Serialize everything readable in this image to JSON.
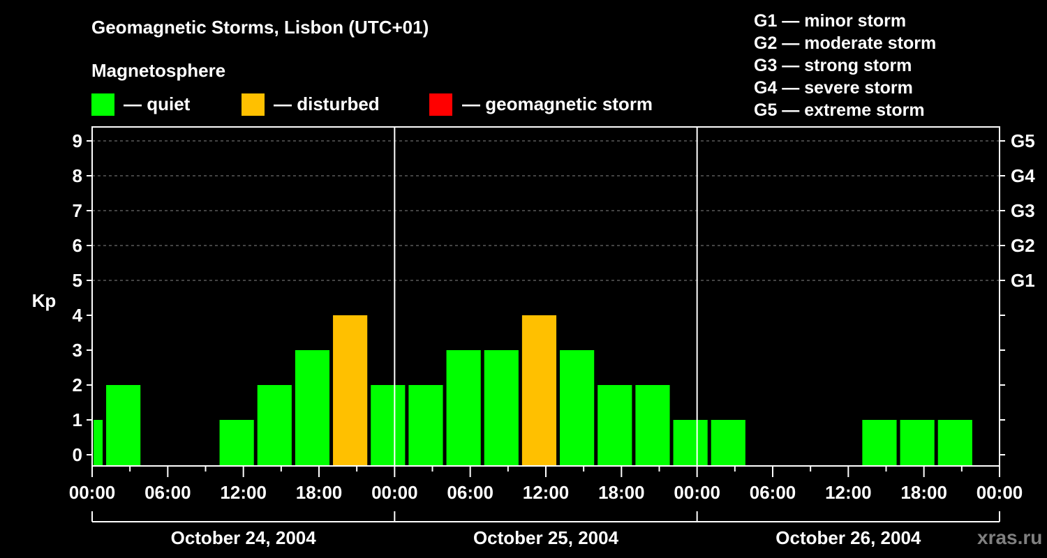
{
  "header": {
    "title": "Geomagnetic Storms, Lisbon (UTC+01)",
    "subtitle": "Magnetosphere"
  },
  "legend": [
    {
      "label": "— quiet",
      "color": "#00ff00"
    },
    {
      "label": "— disturbed",
      "color": "#ffc000"
    },
    {
      "label": "— geomagnetic storm",
      "color": "#ff0000"
    }
  ],
  "g_scale": [
    "G1 — minor storm",
    "G2 — moderate storm",
    "G3 — strong storm",
    "G4 — severe storm",
    "G5 — extreme storm"
  ],
  "watermark": "xras.ru",
  "chart_data": {
    "type": "bar",
    "title": "Geomagnetic Storms, Lisbon (UTC+01)",
    "ylabel": "Kp",
    "ylim": [
      0,
      9
    ],
    "y_ticks": [
      0,
      1,
      2,
      3,
      4,
      5,
      6,
      7,
      8,
      9
    ],
    "right_ticks": [
      {
        "kp": 5,
        "label": "G1"
      },
      {
        "kp": 6,
        "label": "G2"
      },
      {
        "kp": 7,
        "label": "G3"
      },
      {
        "kp": 8,
        "label": "G4"
      },
      {
        "kp": 9,
        "label": "G5"
      }
    ],
    "x_tick_labels": [
      "00:00",
      "06:00",
      "12:00",
      "18:00",
      "00:00",
      "06:00",
      "12:00",
      "18:00",
      "00:00",
      "06:00",
      "12:00",
      "18:00",
      "00:00"
    ],
    "days": [
      "October 24, 2004",
      "October 25, 2004",
      "October 26, 2004"
    ],
    "grid": "dashed at Kp 5-9",
    "series": [
      {
        "name": "Kp",
        "bars": [
          {
            "start_h": 0,
            "end_h": 1,
            "kp": 1,
            "status": "quiet"
          },
          {
            "start_h": 1,
            "end_h": 4,
            "kp": 2,
            "status": "quiet"
          },
          {
            "start_h": 4,
            "end_h": 7,
            "kp": 0,
            "status": "quiet"
          },
          {
            "start_h": 7,
            "end_h": 10,
            "kp": 0,
            "status": "quiet"
          },
          {
            "start_h": 10,
            "end_h": 13,
            "kp": 1,
            "status": "quiet"
          },
          {
            "start_h": 13,
            "end_h": 16,
            "kp": 2,
            "status": "quiet"
          },
          {
            "start_h": 16,
            "end_h": 19,
            "kp": 3,
            "status": "quiet"
          },
          {
            "start_h": 19,
            "end_h": 22,
            "kp": 4,
            "status": "disturbed"
          },
          {
            "start_h": 22,
            "end_h": 25,
            "kp": 2,
            "status": "quiet"
          },
          {
            "start_h": 25,
            "end_h": 28,
            "kp": 2,
            "status": "quiet"
          },
          {
            "start_h": 28,
            "end_h": 31,
            "kp": 3,
            "status": "quiet"
          },
          {
            "start_h": 31,
            "end_h": 34,
            "kp": 3,
            "status": "quiet"
          },
          {
            "start_h": 34,
            "end_h": 37,
            "kp": 4,
            "status": "disturbed"
          },
          {
            "start_h": 37,
            "end_h": 40,
            "kp": 3,
            "status": "quiet"
          },
          {
            "start_h": 40,
            "end_h": 43,
            "kp": 2,
            "status": "quiet"
          },
          {
            "start_h": 43,
            "end_h": 46,
            "kp": 2,
            "status": "quiet"
          },
          {
            "start_h": 46,
            "end_h": 49,
            "kp": 1,
            "status": "quiet"
          },
          {
            "start_h": 49,
            "end_h": 52,
            "kp": 1,
            "status": "quiet"
          },
          {
            "start_h": 52,
            "end_h": 55,
            "kp": 0,
            "status": "quiet"
          },
          {
            "start_h": 55,
            "end_h": 58,
            "kp": 0,
            "status": "quiet"
          },
          {
            "start_h": 58,
            "end_h": 61,
            "kp": 0,
            "status": "quiet"
          },
          {
            "start_h": 61,
            "end_h": 64,
            "kp": 1,
            "status": "quiet"
          },
          {
            "start_h": 64,
            "end_h": 67,
            "kp": 1,
            "status": "quiet"
          },
          {
            "start_h": 67,
            "end_h": 70,
            "kp": 1,
            "status": "quiet"
          }
        ]
      }
    ]
  }
}
